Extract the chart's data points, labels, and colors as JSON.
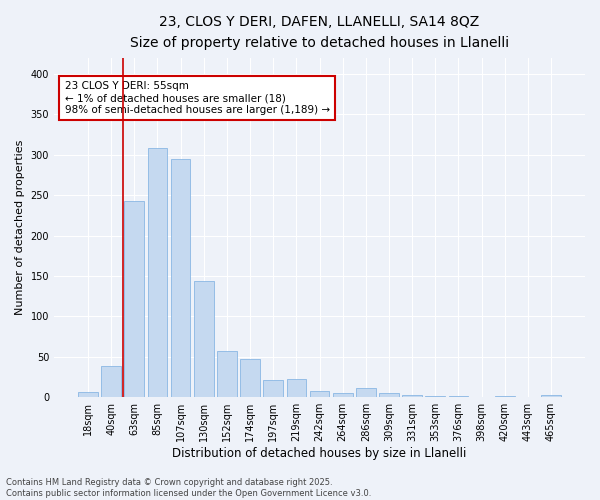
{
  "title1": "23, CLOS Y DERI, DAFEN, LLANELLI, SA14 8QZ",
  "title2": "Size of property relative to detached houses in Llanelli",
  "xlabel": "Distribution of detached houses by size in Llanelli",
  "ylabel": "Number of detached properties",
  "categories": [
    "18sqm",
    "40sqm",
    "63sqm",
    "85sqm",
    "107sqm",
    "130sqm",
    "152sqm",
    "174sqm",
    "197sqm",
    "219sqm",
    "242sqm",
    "264sqm",
    "286sqm",
    "309sqm",
    "331sqm",
    "353sqm",
    "376sqm",
    "398sqm",
    "420sqm",
    "443sqm",
    "465sqm"
  ],
  "values": [
    7,
    39,
    243,
    308,
    295,
    144,
    57,
    47,
    21,
    22,
    8,
    5,
    12,
    5,
    3,
    2,
    1,
    0,
    1,
    0,
    3
  ],
  "bar_color": "#c5d9f0",
  "bar_edge_color": "#7aade0",
  "marker_color": "#cc0000",
  "annotation_text": "23 CLOS Y DERI: 55sqm\n← 1% of detached houses are smaller (18)\n98% of semi-detached houses are larger (1,189) →",
  "annotation_box_color": "#ffffff",
  "annotation_edge_color": "#cc0000",
  "ylim": [
    0,
    420
  ],
  "yticks": [
    0,
    50,
    100,
    150,
    200,
    250,
    300,
    350,
    400
  ],
  "background_color": "#eef2f9",
  "plot_background": "#eef2f9",
  "footer_text": "Contains HM Land Registry data © Crown copyright and database right 2025.\nContains public sector information licensed under the Open Government Licence v3.0.",
  "title1_fontsize": 10,
  "title2_fontsize": 9,
  "xlabel_fontsize": 8.5,
  "ylabel_fontsize": 8,
  "tick_fontsize": 7,
  "annotation_fontsize": 7.5,
  "footer_fontsize": 6
}
